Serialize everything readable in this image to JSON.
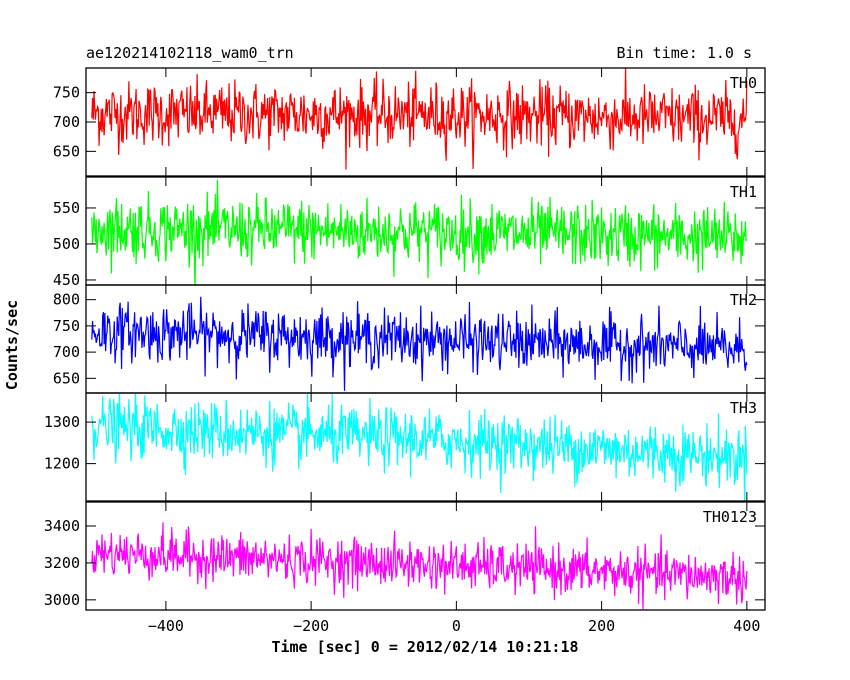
{
  "chart_data": {
    "type": "line",
    "title": "ae120214102118_wam0_trn",
    "bin_time_label": "Bin time: 1.0 s",
    "xlabel": "Time [sec] 0 = 2012/02/14 10:21:18",
    "ylabel": "Counts/sec",
    "xlim": [
      -510,
      425
    ],
    "xticks": [
      -400,
      -200,
      0,
      200,
      400
    ],
    "x_start": -502,
    "x_end": 400,
    "grid": false,
    "panels": [
      {
        "name": "TH0",
        "color": "#ff0000",
        "ylim": [
          608,
          792
        ],
        "yticks": [
          650,
          700,
          750
        ],
        "trend": [
          [
            -500,
            715
          ],
          [
            0,
            712
          ],
          [
            400,
            705
          ]
        ],
        "noise_sd": 27
      },
      {
        "name": "TH1",
        "color": "#00ff00",
        "ylim": [
          443,
          593
        ],
        "yticks": [
          450,
          500,
          550
        ],
        "trend": [
          [
            -500,
            522
          ],
          [
            0,
            516
          ],
          [
            400,
            508
          ]
        ],
        "noise_sd": 22
      },
      {
        "name": "TH2",
        "color": "#0000ff",
        "ylim": [
          622,
          828
        ],
        "yticks": [
          650,
          700,
          750,
          800
        ],
        "trend": [
          [
            -500,
            740
          ],
          [
            0,
            722
          ],
          [
            400,
            705
          ]
        ],
        "noise_sd": 27
      },
      {
        "name": "TH3",
        "color": "#00ffff",
        "ylim": [
          1110,
          1370
        ],
        "yticks": [
          1200,
          1300
        ],
        "trend": [
          [
            -500,
            1290
          ],
          [
            0,
            1255
          ],
          [
            400,
            1215
          ]
        ],
        "noise_sd": 36
      },
      {
        "name": "TH0123",
        "color": "#ff00ff",
        "ylim": [
          2945,
          3530
        ],
        "yticks": [
          3000,
          3200,
          3400
        ],
        "trend": [
          [
            -500,
            3255
          ],
          [
            0,
            3185
          ],
          [
            400,
            3120
          ]
        ],
        "noise_sd": 65
      }
    ]
  }
}
